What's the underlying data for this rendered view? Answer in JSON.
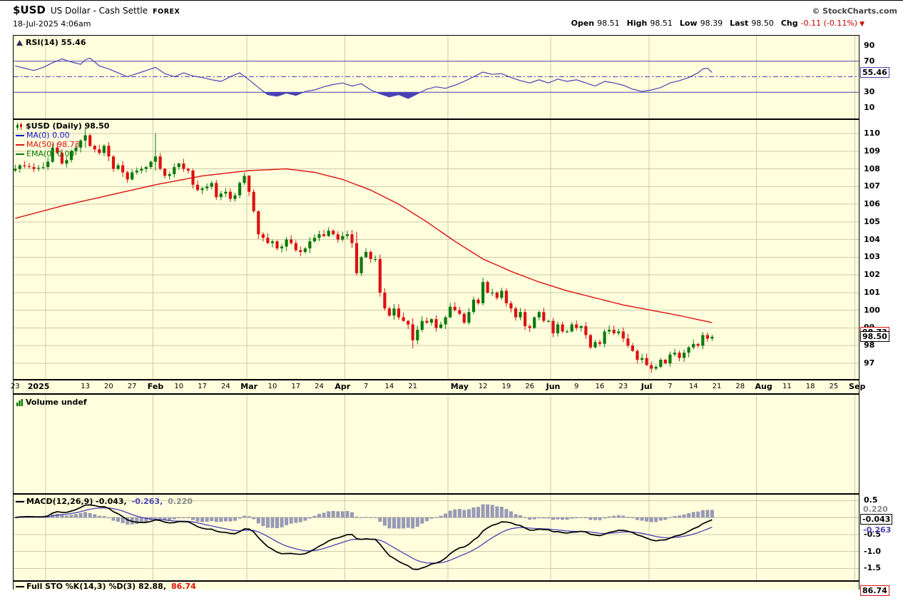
{
  "header": {
    "symbol": "$USD",
    "description": "US Dollar - Cash Settle",
    "exchange": "FOREX",
    "copyright": "© StockCharts.com",
    "datetime": "18-Jul-2025 4:06am",
    "quote_fields": [
      {
        "label": "Open",
        "value": "98.51"
      },
      {
        "label": "High",
        "value": "98.51"
      },
      {
        "label": "Low",
        "value": "98.39"
      },
      {
        "label": "Last",
        "value": "98.50"
      },
      {
        "label": "Chg",
        "value": "-0.11 (-0.11%)"
      }
    ]
  },
  "panels": {
    "rsi": {
      "legend": "RSI(14) 55.46",
      "overbought": 70,
      "oversold": 30,
      "midline": 50,
      "axis_ticks": [
        {
          "v": 90,
          "t": "90"
        },
        {
          "v": 70,
          "t": "70"
        },
        {
          "v": 30,
          "t": "30"
        },
        {
          "v": 10,
          "t": "10"
        }
      ],
      "current_box": {
        "t": "55.46",
        "v": 55.46
      }
    },
    "price": {
      "legend_main": "$USD (Daily) 98.50",
      "legend_ma1": "MA(0) 0.00",
      "legend_ma50": "MA(50) 98.73",
      "legend_ema": "EMA(0) 0.00",
      "axis_ticks": [
        110,
        109,
        108,
        107,
        106,
        105,
        104,
        103,
        102,
        101,
        100,
        99,
        98,
        97
      ],
      "current_box": {
        "t": "98.50",
        "v": 98.5
      },
      "ma50_box": {
        "t": "98.73",
        "v": 98.73
      }
    },
    "volume": {
      "legend": "Volume undef"
    },
    "macd": {
      "legend_main": "MACD(12,26,9) -0.043,",
      "legend_signal": "-0.263,",
      "legend_hist": "0.220",
      "axis_ticks": [
        {
          "v": 0.5,
          "t": "0.5"
        },
        {
          "v": -0.5,
          "t": "-0.5"
        },
        {
          "v": -1.0,
          "t": "-1.0"
        },
        {
          "v": -1.5,
          "t": "-1.5"
        }
      ],
      "hist_value": {
        "t": "0.220",
        "v": 0.22
      },
      "current_box": {
        "t": "-0.043",
        "v": -0.043
      },
      "signal_value": {
        "t": "-0.263",
        "v": -0.263
      }
    },
    "sto": {
      "legend_main": "Full STO %K(14,3) %D(3) 82.88,",
      "legend_d": "86.74",
      "current_box": {
        "t": "86.74"
      }
    }
  },
  "date_axis": {
    "labels": [
      {
        "i": 0,
        "t": "23"
      },
      {
        "i": 5,
        "t": "2025",
        "m": true
      },
      {
        "i": 15,
        "t": "13"
      },
      {
        "i": 20,
        "t": "20"
      },
      {
        "i": 25,
        "t": "27"
      },
      {
        "i": 30,
        "t": "Feb",
        "m": true
      },
      {
        "i": 35,
        "t": "10"
      },
      {
        "i": 40,
        "t": "17"
      },
      {
        "i": 45,
        "t": "24"
      },
      {
        "i": 50,
        "t": "Mar",
        "m": true
      },
      {
        "i": 55,
        "t": "10"
      },
      {
        "i": 60,
        "t": "17"
      },
      {
        "i": 65,
        "t": "24"
      },
      {
        "i": 70,
        "t": "Apr",
        "m": true
      },
      {
        "i": 75,
        "t": "7"
      },
      {
        "i": 80,
        "t": "14"
      },
      {
        "i": 85,
        "t": "21"
      },
      {
        "i": 95,
        "t": "May",
        "m": true
      },
      {
        "i": 100,
        "t": "12"
      },
      {
        "i": 105,
        "t": "19"
      },
      {
        "i": 110,
        "t": "26"
      },
      {
        "i": 115,
        "t": "Jun",
        "m": true
      },
      {
        "i": 120,
        "t": "9"
      },
      {
        "i": 125,
        "t": "16"
      },
      {
        "i": 130,
        "t": "23"
      },
      {
        "i": 135,
        "t": "Jul",
        "m": true
      },
      {
        "i": 140,
        "t": "7"
      },
      {
        "i": 145,
        "t": "14"
      },
      {
        "i": 150,
        "t": "21"
      },
      {
        "i": 155,
        "t": "28"
      },
      {
        "i": 160,
        "t": "Aug",
        "m": true
      },
      {
        "i": 165,
        "t": "11"
      },
      {
        "i": 170,
        "t": "18"
      },
      {
        "i": 175,
        "t": "25"
      },
      {
        "i": 180,
        "t": "Sep",
        "m": true
      }
    ]
  },
  "colors": {
    "up": "#0b7a0b",
    "down": "#dd1111",
    "ma50": "#dd1111",
    "rsi": "#4a42b4",
    "signal": "#4a42b4",
    "macd_line": "#000000",
    "histogram": "#9a9ab8",
    "histogram_edge": "#8a8aa8",
    "grid": "#cbcbaf",
    "panel_bg": "#ffffdd",
    "negative": "#cc0000",
    "hist_label": "#888888"
  },
  "chart_data": {
    "type": "candlestick",
    "symbol": "$USD",
    "timeframe": "Daily",
    "title": "$USD US Dollar - Cash Settle FOREX",
    "x_start": "2024-12-23",
    "x_last_candle": "2025-07-18",
    "x_axis_end": "2025-09-01",
    "slots": 181,
    "month_gridlines": [
      7,
      30,
      50,
      71,
      93,
      115,
      136,
      159,
      180
    ],
    "price_axis": {
      "min": 96.2,
      "max": 110.7
    },
    "open": 98.51,
    "high": 98.51,
    "low": 98.39,
    "last": 98.5,
    "chg": -0.11,
    "chg_pct": -0.11,
    "first_open": 107.9,
    "closes": [
      108.0,
      108.2,
      108.15,
      108.1,
      108.0,
      108.05,
      108.1,
      108.4,
      109.2,
      108.9,
      108.3,
      108.5,
      109.0,
      109.2,
      109.6,
      109.9,
      109.3,
      109.1,
      108.9,
      109.3,
      108.7,
      108.0,
      108.2,
      107.8,
      107.4,
      107.8,
      107.9,
      108.0,
      108.1,
      108.4,
      108.7,
      108.0,
      107.6,
      107.7,
      108.1,
      108.3,
      108.0,
      107.9,
      107.1,
      106.8,
      106.9,
      107.0,
      107.2,
      106.4,
      106.6,
      106.7,
      106.3,
      106.5,
      107.2,
      107.6,
      106.7,
      105.6,
      104.3,
      104.1,
      103.8,
      103.9,
      103.5,
      103.6,
      104.0,
      103.8,
      103.4,
      103.3,
      103.5,
      103.9,
      104.1,
      104.3,
      104.2,
      104.5,
      104.3,
      104.0,
      104.2,
      104.3,
      103.8,
      102.1,
      103.0,
      103.3,
      102.9,
      102.9,
      101.0,
      100.1,
      99.7,
      100.1,
      99.6,
      99.4,
      99.2,
      98.3,
      98.9,
      99.4,
      99.3,
      99.5,
      99.0,
      99.2,
      99.6,
      100.2,
      100.0,
      99.8,
      99.3,
      99.9,
      100.6,
      100.4,
      101.6,
      101.0,
      101.0,
      100.7,
      101.1,
      100.4,
      100.1,
      99.6,
      99.9,
      99.1,
      99.0,
      99.6,
      99.9,
      99.4,
      99.4,
      98.7,
      99.2,
      98.8,
      98.8,
      99.2,
      99.0,
      99.1,
      98.6,
      97.9,
      98.2,
      98.1,
      98.8,
      98.9,
      98.7,
      98.8,
      98.4,
      98.0,
      97.7,
      97.2,
      97.3,
      96.9,
      96.7,
      96.8,
      97.2,
      97.0,
      97.5,
      97.6,
      97.3,
      97.6,
      97.9,
      98.1,
      98.0,
      98.6,
      98.4,
      98.5
    ],
    "wick_overrides": [
      [
        15,
        110.35,
        109.2
      ],
      [
        30,
        110.0,
        107.9
      ],
      [
        73,
        104.45,
        101.95
      ],
      [
        85,
        99.55,
        97.85
      ],
      [
        136,
        97.1,
        96.45
      ]
    ],
    "ma50": [
      [
        0,
        105.2
      ],
      [
        10,
        105.9
      ],
      [
        20,
        106.5
      ],
      [
        30,
        107.1
      ],
      [
        40,
        107.6
      ],
      [
        50,
        107.9
      ],
      [
        58,
        108.0
      ],
      [
        64,
        107.8
      ],
      [
        70,
        107.4
      ],
      [
        76,
        106.8
      ],
      [
        82,
        106.0
      ],
      [
        88,
        105.0
      ],
      [
        94,
        103.9
      ],
      [
        100,
        102.9
      ],
      [
        106,
        102.2
      ],
      [
        112,
        101.6
      ],
      [
        118,
        101.1
      ],
      [
        124,
        100.7
      ],
      [
        130,
        100.3
      ],
      [
        136,
        100.0
      ],
      [
        142,
        99.7
      ],
      [
        149,
        99.3
      ]
    ],
    "ma50_last": 98.73,
    "rsi_last": 55.46,
    "rsi_series": [
      [
        0,
        64
      ],
      [
        2,
        61
      ],
      [
        4,
        58
      ],
      [
        6,
        62
      ],
      [
        8,
        68
      ],
      [
        10,
        73
      ],
      [
        12,
        69
      ],
      [
        14,
        66
      ],
      [
        15,
        72
      ],
      [
        16,
        74
      ],
      [
        18,
        64
      ],
      [
        20,
        60
      ],
      [
        22,
        55
      ],
      [
        24,
        50
      ],
      [
        26,
        54
      ],
      [
        28,
        58
      ],
      [
        30,
        62
      ],
      [
        32,
        54
      ],
      [
        34,
        50
      ],
      [
        36,
        55
      ],
      [
        38,
        51
      ],
      [
        40,
        49
      ],
      [
        42,
        46
      ],
      [
        44,
        44
      ],
      [
        46,
        50
      ],
      [
        48,
        55
      ],
      [
        50,
        46
      ],
      [
        52,
        36
      ],
      [
        54,
        27
      ],
      [
        56,
        25
      ],
      [
        58,
        29
      ],
      [
        60,
        26
      ],
      [
        62,
        31
      ],
      [
        64,
        33
      ],
      [
        66,
        37
      ],
      [
        68,
        40
      ],
      [
        70,
        42
      ],
      [
        72,
        38
      ],
      [
        74,
        41
      ],
      [
        76,
        33
      ],
      [
        78,
        28
      ],
      [
        80,
        24
      ],
      [
        82,
        27
      ],
      [
        84,
        22
      ],
      [
        86,
        28
      ],
      [
        88,
        34
      ],
      [
        90,
        37
      ],
      [
        92,
        35
      ],
      [
        94,
        39
      ],
      [
        96,
        44
      ],
      [
        98,
        50
      ],
      [
        100,
        56
      ],
      [
        102,
        53
      ],
      [
        104,
        54
      ],
      [
        106,
        49
      ],
      [
        108,
        45
      ],
      [
        110,
        42
      ],
      [
        112,
        46
      ],
      [
        114,
        42
      ],
      [
        116,
        47
      ],
      [
        118,
        44
      ],
      [
        120,
        46
      ],
      [
        122,
        42
      ],
      [
        124,
        38
      ],
      [
        126,
        44
      ],
      [
        128,
        42
      ],
      [
        130,
        39
      ],
      [
        132,
        34
      ],
      [
        134,
        31
      ],
      [
        136,
        33
      ],
      [
        138,
        36
      ],
      [
        140,
        42
      ],
      [
        142,
        45
      ],
      [
        144,
        49
      ],
      [
        146,
        55
      ],
      [
        147,
        60
      ],
      [
        148,
        61
      ],
      [
        149,
        55.46
      ]
    ],
    "macd_params": [
      12,
      26,
      9
    ],
    "macd_last": -0.043,
    "macd_signal_last": -0.263,
    "macd_hist_last": 0.22,
    "sto_k_last": 82.88,
    "sto_d_last": 86.74,
    "volume": "undef"
  }
}
